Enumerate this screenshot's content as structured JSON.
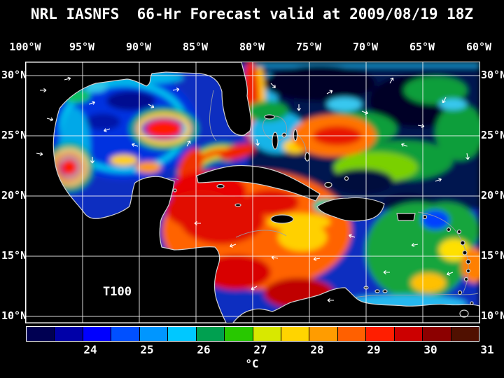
{
  "title": "NRL IASNFS  66-Hr Forecast valid at 2009/08/19 18Z",
  "axes": {
    "lon_labels": [
      "100°W",
      "95°W",
      "90°W",
      "85°W",
      "80°W",
      "75°W",
      "70°W",
      "65°W",
      "60°W"
    ],
    "lat_labels": [
      "30°N",
      "25°N",
      "20°N",
      "15°N",
      "10°N"
    ]
  },
  "map": {
    "annotation": "T100"
  },
  "colorbar": {
    "tick_labels": [
      "24",
      "25",
      "26",
      "27",
      "28",
      "29",
      "30",
      "31"
    ],
    "unit": "°C",
    "colors": [
      "#000052",
      "#0000a8",
      "#0000ff",
      "#0050ff",
      "#0096ff",
      "#00c8ff",
      "#00a050",
      "#28c800",
      "#d8e800",
      "#ffd400",
      "#ff9c00",
      "#ff6000",
      "#ff1e00",
      "#cc0000",
      "#8c0000",
      "#501000"
    ]
  }
}
